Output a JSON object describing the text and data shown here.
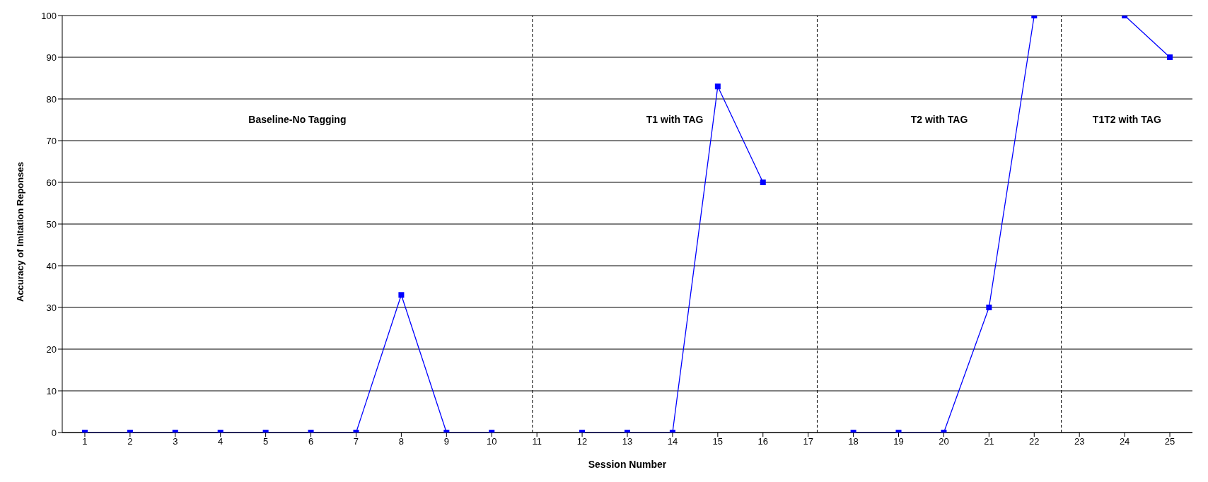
{
  "chart_data": {
    "type": "line",
    "xlabel": "Session Number",
    "ylabel": "Accuracy of Imitation Reponses",
    "x": [
      1,
      2,
      3,
      4,
      5,
      6,
      7,
      8,
      9,
      10,
      11,
      12,
      13,
      14,
      15,
      16,
      17,
      18,
      19,
      20,
      21,
      22,
      23,
      24,
      25
    ],
    "series": [
      {
        "color": "#0000ff",
        "values": [
          0,
          0,
          0,
          0,
          0,
          0,
          0,
          33,
          0,
          0,
          null,
          0,
          0,
          0,
          83,
          60,
          null,
          0,
          0,
          0,
          30,
          100,
          null,
          100,
          90
        ]
      }
    ],
    "xlim": [
      0.5,
      25.5
    ],
    "xticks": [
      1,
      2,
      3,
      4,
      5,
      6,
      7,
      8,
      9,
      10,
      11,
      12,
      13,
      14,
      15,
      16,
      17,
      18,
      19,
      20,
      21,
      22,
      23,
      24,
      25
    ],
    "ylim": [
      0,
      100
    ],
    "yticks": [
      0,
      10,
      20,
      30,
      40,
      50,
      60,
      70,
      80,
      90,
      100
    ],
    "grid": "y",
    "marker": "square",
    "line_style": "solid",
    "legend": false,
    "ref_lines": [
      {
        "axis": "x",
        "value": 10.9,
        "color": "#000000",
        "line_style": "dashed"
      },
      {
        "axis": "x",
        "value": 17.2,
        "color": "#000000",
        "line_style": "dashed"
      },
      {
        "axis": "x",
        "value": 22.6,
        "color": "#000000",
        "line_style": "dashed"
      }
    ],
    "annotations": [
      "Baseline-No Tagging",
      "T1 with TAG",
      "T2 with TAG",
      "T1T2 with TAG"
    ]
  }
}
